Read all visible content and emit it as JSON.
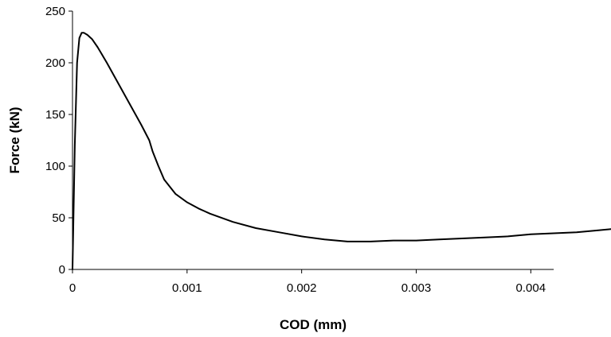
{
  "chart_data": {
    "type": "line",
    "title": "",
    "xlabel": "COD (mm)",
    "ylabel": "Force (kN)",
    "xlim": [
      0,
      0.0047
    ],
    "ylim": [
      0,
      250
    ],
    "x_ticks": [
      0,
      0.001,
      0.002,
      0.003,
      0.004
    ],
    "x_tick_labels": [
      "0",
      "0.001",
      "0.002",
      "0.003",
      "0.004"
    ],
    "y_ticks": [
      0,
      50,
      100,
      150,
      200,
      250
    ],
    "y_tick_labels": [
      "0",
      "50",
      "100",
      "150",
      "200",
      "250"
    ],
    "grid": false,
    "legend": "none",
    "line_color": "#000000",
    "series": [
      {
        "x": [
          0,
          2e-05,
          4e-05,
          6e-05,
          8e-05,
          0.0001,
          0.00013,
          0.00017,
          0.00022,
          0.0003,
          0.0004,
          0.0005,
          0.0006,
          0.00067,
          0.0007,
          0.00075,
          0.0008,
          0.0009,
          0.001,
          0.0011,
          0.0012,
          0.0014,
          0.0016,
          0.0018,
          0.002,
          0.0022,
          0.0024,
          0.0026,
          0.0028,
          0.003,
          0.0032,
          0.0034,
          0.0036,
          0.0038,
          0.004,
          0.0042,
          0.0044,
          0.0046,
          0.0047
        ],
        "y": [
          0,
          120,
          200,
          224,
          229,
          229,
          227,
          223,
          215,
          200,
          180,
          160,
          140,
          125,
          114,
          100,
          87,
          73,
          65,
          59,
          54,
          46,
          40,
          36,
          32,
          29,
          27,
          27,
          28,
          28,
          29,
          30,
          31,
          32,
          34,
          35,
          36,
          38,
          39
        ]
      }
    ]
  }
}
